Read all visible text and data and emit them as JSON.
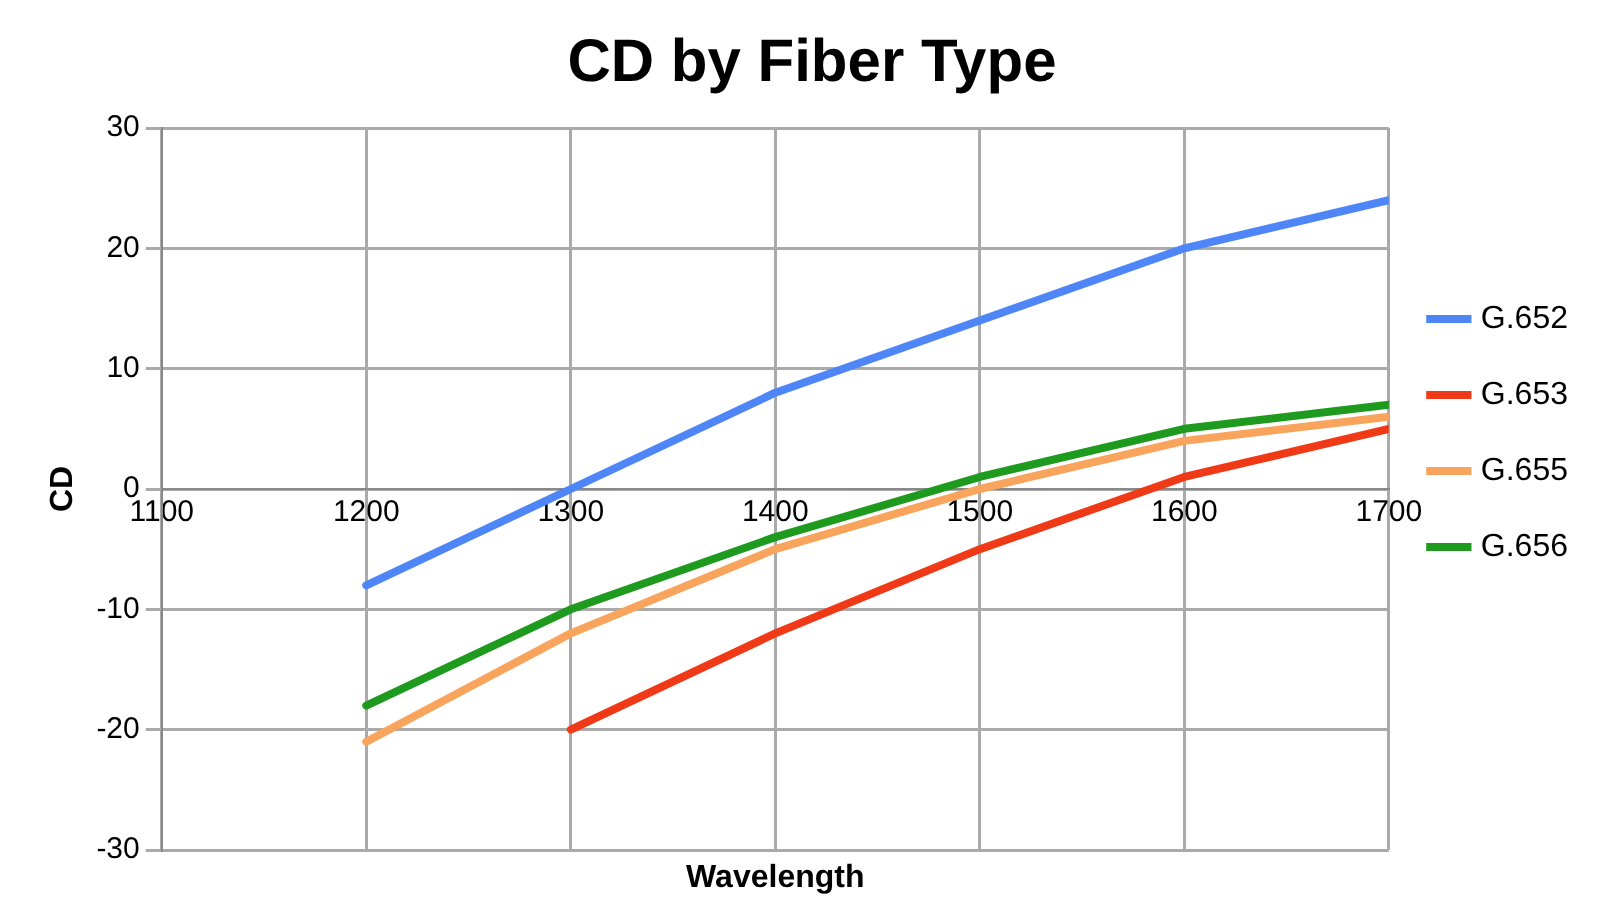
{
  "chart_data": {
    "type": "line",
    "title": "CD by Fiber Type",
    "xlabel": "Wavelength",
    "ylabel": "CD",
    "x": [
      1200,
      1300,
      1400,
      1500,
      1600,
      1700
    ],
    "series": [
      {
        "name": "G.652",
        "color": "#4f86f7",
        "values": [
          -8,
          0,
          8,
          14,
          20,
          24
        ]
      },
      {
        "name": "G.653",
        "color": "#f03a17",
        "values": [
          null,
          -20,
          -12,
          -5,
          1,
          5
        ]
      },
      {
        "name": "G.655",
        "color": "#f8a45c",
        "values": [
          -21,
          -12,
          -5,
          0,
          4,
          6
        ]
      },
      {
        "name": "G.656",
        "color": "#1e9a1e",
        "values": [
          -18,
          -10,
          -4,
          1,
          5,
          7
        ]
      }
    ],
    "xlim": [
      1100,
      1700
    ],
    "xticks": [
      1100,
      1200,
      1300,
      1400,
      1500,
      1600,
      1700
    ],
    "ylim": [
      -30,
      30
    ],
    "yticks": [
      -30,
      -20,
      -10,
      0,
      10,
      20,
      30
    ],
    "grid": true,
    "legend": "right",
    "marker": "none",
    "line_style": "solid"
  }
}
